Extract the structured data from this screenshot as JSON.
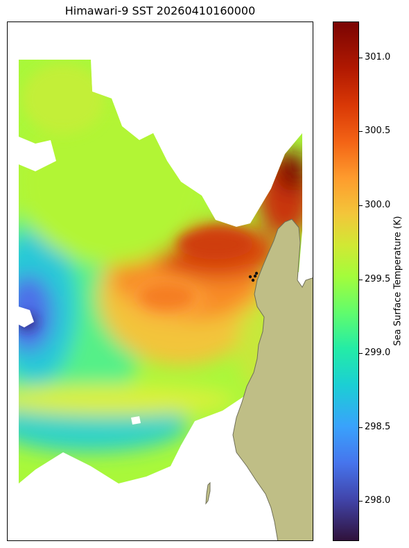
{
  "title": "Himawari-9 SST 20260410160000",
  "colorbar": {
    "label": "Sea Surface Temperature (K)",
    "ticks": [
      "301.0",
      "300.5",
      "300.0",
      "299.5",
      "299.0",
      "298.5",
      "298.0"
    ],
    "range": [
      297.73,
      301.24
    ],
    "colormap": "turbo"
  },
  "colors": {
    "land": "#bfbe86",
    "coastline": "#6f6f58",
    "observation_points": "#111111"
  }
}
